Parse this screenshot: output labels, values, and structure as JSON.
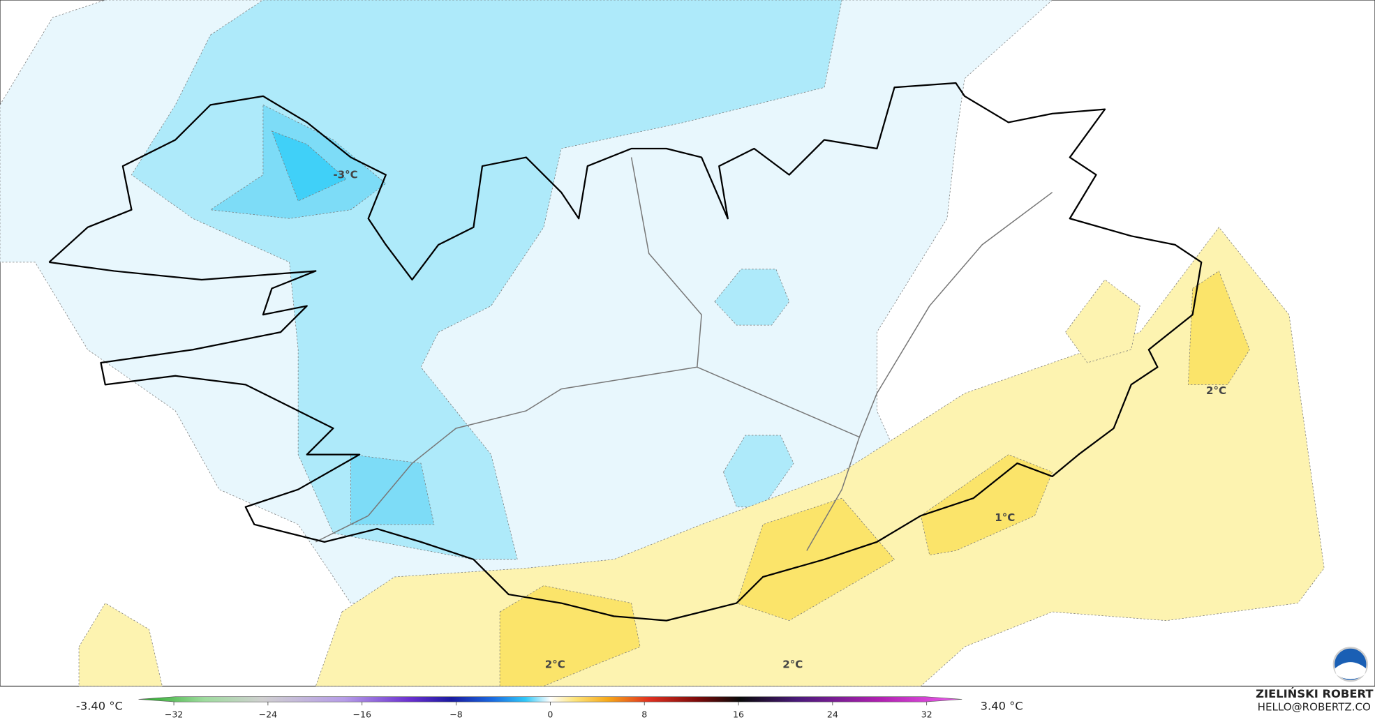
{
  "map": {
    "contour_labels": [
      "-3°C",
      "2°C",
      "1°C",
      "2°C",
      "2°C"
    ]
  },
  "colorbar": {
    "min_label": "-3.40 °C",
    "max_label": "3.40 °C",
    "lim": [
      -35,
      35
    ],
    "ticks": [
      {
        "value": -32,
        "label": "−32"
      },
      {
        "value": -24,
        "label": "−24"
      },
      {
        "value": -16,
        "label": "−16"
      },
      {
        "value": -8,
        "label": "−8"
      },
      0,
      8,
      16,
      24,
      32
    ]
  },
  "credit": {
    "author": "ZIELIŃSKI ROBERT",
    "email": "HELLO@ROBERTZ.CO"
  }
}
